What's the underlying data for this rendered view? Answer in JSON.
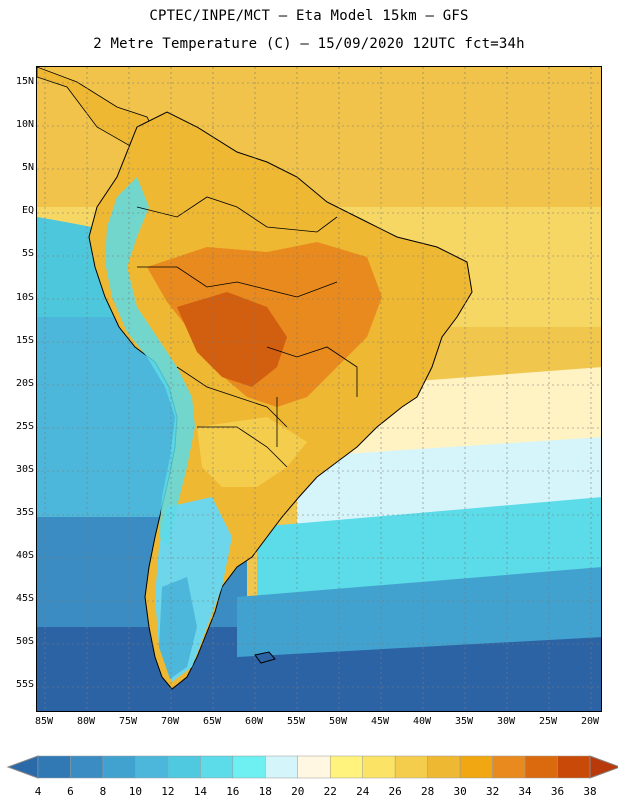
{
  "header": {
    "line1": "CPTEC/INPE/MCT –  Eta Model 15km – GFS",
    "line2": "2 Metre Temperature (C) – 15/09/2020 12UTC fct=34h"
  },
  "axes": {
    "lat_labels": [
      "15N",
      "10N",
      "5N",
      "EQ",
      "5S",
      "10S",
      "15S",
      "20S",
      "25S",
      "30S",
      "35S",
      "40S",
      "45S",
      "50S",
      "55S"
    ],
    "lon_labels": [
      "85W",
      "80W",
      "75W",
      "70W",
      "65W",
      "60W",
      "55W",
      "50W",
      "45W",
      "40W",
      "35W",
      "30W",
      "25W",
      "20W"
    ]
  },
  "colorbar": {
    "labels": [
      "4",
      "6",
      "8",
      "10",
      "12",
      "14",
      "16",
      "18",
      "20",
      "22",
      "24",
      "26",
      "28",
      "30",
      "32",
      "34",
      "36",
      "38"
    ],
    "colors": [
      "#2a6aa8",
      "#3079b5",
      "#3a8cc2",
      "#42a2cf",
      "#4cb7da",
      "#4ec9e0",
      "#5cdbe8",
      "#6ef0f2",
      "#d4f6fb",
      "#fff7e2",
      "#fff37e",
      "#fbe366",
      "#f4cd4c",
      "#eeb833",
      "#f0a711",
      "#e98a1e",
      "#db6a0f",
      "#c94a08",
      "#b8390a"
    ]
  },
  "map": {
    "legend_colors": {
      "ocean_cold": "#2c63a5",
      "ocean_mid": "#3a8cc2",
      "ocean_cyan": "#4cc7dc",
      "ocean_pale": "#d6f5fa",
      "ocean_warm_yellow": "#f7d764",
      "ocean_tropical": "#f1c64c",
      "land_hot": "#e98a1e",
      "land_very_hot": "#d25e10",
      "andes_cold": "#4ec9e0"
    }
  }
}
